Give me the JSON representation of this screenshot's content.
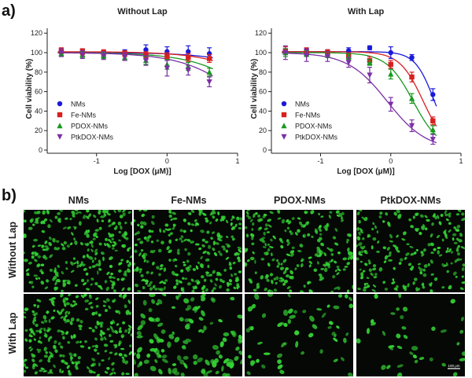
{
  "panel_a_label": "a)",
  "panel_b_label": "b)",
  "chart_data": [
    {
      "type": "scatter",
      "title": "Without Lap",
      "xlabel": "Log [DOX (μM)]",
      "ylabel": "Cell viability (%)",
      "xlim": [
        -1.7,
        1.0
      ],
      "ylim": [
        0,
        125
      ],
      "xticks": [
        -1,
        0,
        1
      ],
      "yticks": [
        0,
        20,
        40,
        60,
        80,
        100,
        120
      ],
      "xtick_labels": [
        "-1",
        "0",
        "1"
      ],
      "ytick_labels": [
        "0",
        "20",
        "40",
        "60",
        "80",
        "100",
        "120"
      ],
      "x": [
        -1.5,
        -1.2,
        -0.9,
        -0.6,
        -0.3,
        0.0,
        0.3,
        0.6
      ],
      "legend_position": "lower-left",
      "series": [
        {
          "name": "NMs",
          "color": "#1a1adb",
          "marker": "circle",
          "values": [
            100,
            100,
            99,
            100,
            103,
            101,
            101,
            99
          ],
          "errors": [
            3,
            4,
            3,
            3,
            5,
            5,
            6,
            6
          ],
          "fit": {
            "top": 100,
            "bottom": 0,
            "ec50_log": 1.9,
            "hill": 1.0
          }
        },
        {
          "name": "Fe-NMs",
          "color": "#d91f1f",
          "marker": "square",
          "values": [
            102,
            101,
            100,
            99,
            97,
            96,
            95,
            94
          ],
          "errors": [
            3,
            3,
            3,
            3,
            4,
            4,
            4,
            4
          ],
          "fit": {
            "top": 101,
            "bottom": 0,
            "ec50_log": 1.65,
            "hill": 1.0
          }
        },
        {
          "name": "PDOX-NMs",
          "color": "#17991f",
          "marker": "triangle-up",
          "values": [
            99,
            98,
            97,
            95,
            92,
            88,
            86,
            80
          ],
          "errors": [
            3,
            3,
            3,
            3,
            4,
            5,
            4,
            4
          ],
          "fit": {
            "top": 100,
            "bottom": 0,
            "ec50_log": 1.35,
            "hill": 1.0
          }
        },
        {
          "name": "PtkDOX-NMs",
          "color": "#7b2fa6",
          "marker": "triangle-down",
          "values": [
            100,
            98,
            97,
            96,
            92,
            84,
            82,
            70
          ],
          "errors": [
            4,
            4,
            4,
            4,
            5,
            8,
            5,
            5
          ],
          "fit": {
            "top": 100,
            "bottom": 0,
            "ec50_log": 1.15,
            "hill": 1.0
          }
        }
      ]
    },
    {
      "type": "scatter",
      "title": "With Lap",
      "xlabel": "Log [DOX (μM)]",
      "ylabel": "Cell viability (%)",
      "xlim": [
        -1.7,
        1.0
      ],
      "ylim": [
        0,
        125
      ],
      "xticks": [
        -1,
        0,
        1
      ],
      "yticks": [
        0,
        20,
        40,
        60,
        80,
        100,
        120
      ],
      "xtick_labels": [
        "-1",
        "0",
        "1"
      ],
      "ytick_labels": [
        "0",
        "20",
        "40",
        "60",
        "80",
        "100",
        "120"
      ],
      "x": [
        -1.5,
        -1.2,
        -0.9,
        -0.6,
        -0.3,
        0.0,
        0.3,
        0.6
      ],
      "legend_position": "lower-left",
      "series": [
        {
          "name": "NMs",
          "color": "#1a1adb",
          "marker": "circle",
          "values": [
            101,
            101,
            100,
            102,
            105,
            100,
            95,
            57
          ],
          "errors": [
            3,
            3,
            3,
            3,
            2,
            6,
            3,
            6
          ],
          "fit": {
            "top": 101,
            "bottom": 0,
            "ec50_log": 0.62,
            "hill": 3.2
          }
        },
        {
          "name": "Fe-NMs",
          "color": "#d91f1f",
          "marker": "square",
          "values": [
            102,
            101,
            100,
            96,
            92,
            88,
            75,
            30
          ],
          "errors": [
            4,
            4,
            3,
            4,
            4,
            4,
            5,
            4
          ],
          "fit": {
            "top": 101,
            "bottom": 0,
            "ec50_log": 0.46,
            "hill": 2.6
          }
        },
        {
          "name": "PDOX-NMs",
          "color": "#17991f",
          "marker": "triangle-up",
          "values": [
            100,
            99,
            98,
            96,
            90,
            78,
            53,
            21
          ],
          "errors": [
            4,
            3,
            3,
            3,
            3,
            5,
            5,
            4
          ],
          "fit": {
            "top": 100,
            "bottom": 0,
            "ec50_log": 0.32,
            "hill": 2.3
          }
        },
        {
          "name": "PtkDOX-NMs",
          "color": "#7b2fa6",
          "marker": "triangle-down",
          "values": [
            100,
            97,
            96,
            90,
            77,
            47,
            25,
            11
          ],
          "errors": [
            7,
            6,
            5,
            5,
            8,
            7,
            6,
            5
          ],
          "fit": {
            "top": 100,
            "bottom": 0,
            "ec50_log": -0.05,
            "hill": 1.55
          }
        }
      ]
    }
  ],
  "micrographs": {
    "column_titles": [
      "NMs",
      "Fe-NMs",
      "PDOX-NMs",
      "PtkDOX-NMs"
    ],
    "row_titles": [
      "Without Lap",
      "With Lap"
    ],
    "scale_bar_label": "100 μm",
    "background_color": "#050805",
    "cell_color": "#34d034",
    "cell_density_per_tile": [
      [
        1.0,
        1.0,
        0.85,
        0.8
      ],
      [
        1.0,
        0.45,
        0.2,
        0.12
      ]
    ]
  }
}
